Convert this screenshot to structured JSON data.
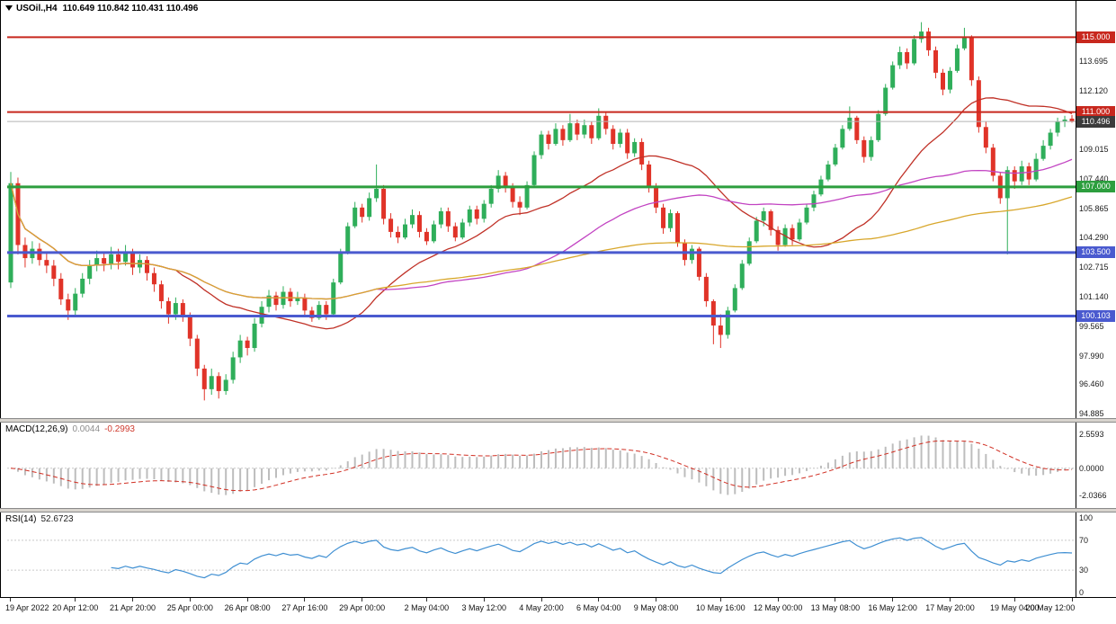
{
  "chart_data": {
    "type": "candlestick",
    "main_chart": {
      "title_symbol": "USOil.,H4",
      "title_ohlc": "110.649 110.842 110.431 110.496",
      "ohlc": {
        "open": 110.649,
        "high": 110.842,
        "low": 110.431,
        "close": 110.496
      },
      "scale": {
        "min": 94.8,
        "max": 116.6
      },
      "colors": {
        "up": "#2fae5a",
        "down": "#e03328"
      },
      "price_axis_labels": [
        {
          "value": 113.695,
          "text": "113.695"
        },
        {
          "value": 112.12,
          "text": "112.120"
        },
        {
          "value": 109.015,
          "text": "109.015"
        },
        {
          "value": 107.44,
          "text": "107.440"
        },
        {
          "value": 105.865,
          "text": "105.865"
        },
        {
          "value": 104.29,
          "text": "104.290"
        },
        {
          "value": 102.715,
          "text": "102.715"
        },
        {
          "value": 101.14,
          "text": "101.140"
        },
        {
          "value": 99.565,
          "text": "99.565"
        },
        {
          "value": 97.99,
          "text": "97.990"
        },
        {
          "value": 96.46,
          "text": "96.460"
        },
        {
          "value": 94.885,
          "text": "94.885"
        }
      ],
      "hlines": [
        {
          "price": 115.0,
          "text": "115.000",
          "color": "#c8281e",
          "width": 2
        },
        {
          "price": 111.0,
          "text": "111.000",
          "color": "#c8281e",
          "width": 2
        },
        {
          "price": 107.0,
          "text": "107.000",
          "color": "#2c9e3e",
          "width": 3
        },
        {
          "price": 103.5,
          "text": "103.500",
          "color": "#4a5acf",
          "width": 3
        },
        {
          "price": 100.103,
          "text": "100.103",
          "color": "#4a5acf",
          "width": 3
        }
      ],
      "current_price": {
        "price": 110.496,
        "text": "110.496",
        "tag_color": "#3c3c3c",
        "line_color": "#b5b5b5"
      },
      "moving_averages": [
        {
          "name": "ma-fast-red-line",
          "period": 24,
          "color": "#c03127"
        },
        {
          "name": "ma-mid-magenta-line",
          "period": 52,
          "color": "#c243c2"
        },
        {
          "name": "ma-slow-orange-line",
          "period": 120,
          "color": "#d8a72c"
        }
      ],
      "candles": [
        [
          101.9,
          107.8,
          101.6,
          107.2
        ],
        [
          107.2,
          107.5,
          103.4,
          103.9
        ],
        [
          103.9,
          104.3,
          102.7,
          103.2
        ],
        [
          103.2,
          104.1,
          102.9,
          103.7
        ],
        [
          103.7,
          104.0,
          102.8,
          103.1
        ],
        [
          103.1,
          103.5,
          102.4,
          102.8
        ],
        [
          102.8,
          103.1,
          101.7,
          102.1
        ],
        [
          102.1,
          102.4,
          100.7,
          101.0
        ],
        [
          101.0,
          101.3,
          99.9,
          100.4
        ],
        [
          100.4,
          101.6,
          100.1,
          101.3
        ],
        [
          101.3,
          102.4,
          101.1,
          102.1
        ],
        [
          102.1,
          103.1,
          101.8,
          102.8
        ],
        [
          102.8,
          103.6,
          102.5,
          103.2
        ],
        [
          103.2,
          103.5,
          102.5,
          102.9
        ],
        [
          102.9,
          103.8,
          102.6,
          103.4
        ],
        [
          103.4,
          103.7,
          102.6,
          103.0
        ],
        [
          103.0,
          103.9,
          102.8,
          103.5
        ],
        [
          103.5,
          103.7,
          102.3,
          102.7
        ],
        [
          102.7,
          103.4,
          102.4,
          103.1
        ],
        [
          103.1,
          103.3,
          102.0,
          102.4
        ],
        [
          102.4,
          102.7,
          101.4,
          101.8
        ],
        [
          101.8,
          102.0,
          100.5,
          100.9
        ],
        [
          100.9,
          101.1,
          99.7,
          100.2
        ],
        [
          100.2,
          101.1,
          99.9,
          100.8
        ],
        [
          100.8,
          101.0,
          99.8,
          100.1
        ],
        [
          100.1,
          100.3,
          98.5,
          98.9
        ],
        [
          98.9,
          99.1,
          96.9,
          97.3
        ],
        [
          97.3,
          97.5,
          95.6,
          96.2
        ],
        [
          96.2,
          97.3,
          95.9,
          96.9
        ],
        [
          96.9,
          97.1,
          95.7,
          96.1
        ],
        [
          96.1,
          97.0,
          95.9,
          96.7
        ],
        [
          96.7,
          98.2,
          96.5,
          97.9
        ],
        [
          97.9,
          99.1,
          97.6,
          98.8
        ],
        [
          98.8,
          99.0,
          98.0,
          98.4
        ],
        [
          98.4,
          100.0,
          98.2,
          99.7
        ],
        [
          99.7,
          100.9,
          99.5,
          100.6
        ],
        [
          100.6,
          101.5,
          100.3,
          101.2
        ],
        [
          101.2,
          101.4,
          100.4,
          100.7
        ],
        [
          100.7,
          101.7,
          100.5,
          101.4
        ],
        [
          101.4,
          101.6,
          100.6,
          100.9
        ],
        [
          100.9,
          101.4,
          100.7,
          101.1
        ],
        [
          101.1,
          101.3,
          100.1,
          100.4
        ],
        [
          100.4,
          100.6,
          99.8,
          100.0
        ],
        [
          100.0,
          100.9,
          99.9,
          100.7
        ],
        [
          100.7,
          100.9,
          99.9,
          100.2
        ],
        [
          100.2,
          102.1,
          100.1,
          101.9
        ],
        [
          101.9,
          103.7,
          101.8,
          103.5
        ],
        [
          103.5,
          105.1,
          103.4,
          104.9
        ],
        [
          104.9,
          106.2,
          104.8,
          105.9
        ],
        [
          105.9,
          106.1,
          105.1,
          105.4
        ],
        [
          105.4,
          106.7,
          105.2,
          106.4
        ],
        [
          106.4,
          108.2,
          106.2,
          106.9
        ],
        [
          106.9,
          107.1,
          105.0,
          105.3
        ],
        [
          105.3,
          105.6,
          104.3,
          104.6
        ],
        [
          104.6,
          104.9,
          104.0,
          104.3
        ],
        [
          104.3,
          105.3,
          104.2,
          105.0
        ],
        [
          105.0,
          105.8,
          104.8,
          105.5
        ],
        [
          105.5,
          105.7,
          104.3,
          104.6
        ],
        [
          104.6,
          104.8,
          103.9,
          104.1
        ],
        [
          104.1,
          105.2,
          104.0,
          105.0
        ],
        [
          105.0,
          105.9,
          104.8,
          105.7
        ],
        [
          105.7,
          105.9,
          104.6,
          104.9
        ],
        [
          104.9,
          105.1,
          104.1,
          104.3
        ],
        [
          104.3,
          105.3,
          104.2,
          105.1
        ],
        [
          105.1,
          106.0,
          104.9,
          105.8
        ],
        [
          105.8,
          106.0,
          105.0,
          105.3
        ],
        [
          105.3,
          106.3,
          105.1,
          106.1
        ],
        [
          106.1,
          107.1,
          105.9,
          106.9
        ],
        [
          106.9,
          107.9,
          106.7,
          107.6
        ],
        [
          107.6,
          107.8,
          106.7,
          107.0
        ],
        [
          107.0,
          107.2,
          105.9,
          106.2
        ],
        [
          106.2,
          106.5,
          105.5,
          105.9
        ],
        [
          105.9,
          107.3,
          105.8,
          107.1
        ],
        [
          107.1,
          108.9,
          107.0,
          108.7
        ],
        [
          108.7,
          110.0,
          108.5,
          109.8
        ],
        [
          109.8,
          110.0,
          109.0,
          109.3
        ],
        [
          109.3,
          110.4,
          109.2,
          110.1
        ],
        [
          110.1,
          110.3,
          109.2,
          109.5
        ],
        [
          109.5,
          110.9,
          109.4,
          110.4
        ],
        [
          110.4,
          110.6,
          109.5,
          109.8
        ],
        [
          109.8,
          110.6,
          109.6,
          110.3
        ],
        [
          110.3,
          110.5,
          109.3,
          109.6
        ],
        [
          109.6,
          111.2,
          109.5,
          110.8
        ],
        [
          110.8,
          111.0,
          109.8,
          110.1
        ],
        [
          110.1,
          110.3,
          109.0,
          109.3
        ],
        [
          109.3,
          110.1,
          109.1,
          109.9
        ],
        [
          109.9,
          110.1,
          108.5,
          108.8
        ],
        [
          108.8,
          109.6,
          108.6,
          109.4
        ],
        [
          109.4,
          109.6,
          107.9,
          108.2
        ],
        [
          108.2,
          108.4,
          106.7,
          107.0
        ],
        [
          107.0,
          107.2,
          105.6,
          105.9
        ],
        [
          105.9,
          106.1,
          104.5,
          104.8
        ],
        [
          104.8,
          105.8,
          104.6,
          105.6
        ],
        [
          105.6,
          105.7,
          103.8,
          104.0
        ],
        [
          104.0,
          104.2,
          102.8,
          103.1
        ],
        [
          103.1,
          103.9,
          102.9,
          103.7
        ],
        [
          103.7,
          103.8,
          102.0,
          102.2
        ],
        [
          102.2,
          102.4,
          100.6,
          100.9
        ],
        [
          100.9,
          101.0,
          98.6,
          99.6
        ],
        [
          99.6,
          100.2,
          98.4,
          99.1
        ],
        [
          99.1,
          100.6,
          98.9,
          100.4
        ],
        [
          100.4,
          101.8,
          100.3,
          101.6
        ],
        [
          101.6,
          103.1,
          101.5,
          102.9
        ],
        [
          102.9,
          104.3,
          102.8,
          104.1
        ],
        [
          104.1,
          105.4,
          104.0,
          105.2
        ],
        [
          105.2,
          105.9,
          104.9,
          105.7
        ],
        [
          105.7,
          105.8,
          104.4,
          104.7
        ],
        [
          104.7,
          104.9,
          103.6,
          103.9
        ],
        [
          103.9,
          105.0,
          103.8,
          104.8
        ],
        [
          104.8,
          105.0,
          103.9,
          104.2
        ],
        [
          104.2,
          105.3,
          104.1,
          105.1
        ],
        [
          105.1,
          106.1,
          105.0,
          105.9
        ],
        [
          105.9,
          106.8,
          105.7,
          106.6
        ],
        [
          106.6,
          107.6,
          106.5,
          107.4
        ],
        [
          107.4,
          108.4,
          107.3,
          108.2
        ],
        [
          108.2,
          109.3,
          108.1,
          109.1
        ],
        [
          109.1,
          110.3,
          109.0,
          110.1
        ],
        [
          110.1,
          111.3,
          110.0,
          110.7
        ],
        [
          110.7,
          110.8,
          109.3,
          109.5
        ],
        [
          109.5,
          109.7,
          108.3,
          108.6
        ],
        [
          108.6,
          109.7,
          108.4,
          109.5
        ],
        [
          109.5,
          111.1,
          109.4,
          110.9
        ],
        [
          110.9,
          112.5,
          110.8,
          112.3
        ],
        [
          112.3,
          113.7,
          112.2,
          113.5
        ],
        [
          113.5,
          114.5,
          113.3,
          114.2
        ],
        [
          114.2,
          114.4,
          113.3,
          113.6
        ],
        [
          113.6,
          115.1,
          113.5,
          114.9
        ],
        [
          114.9,
          115.8,
          114.7,
          115.3
        ],
        [
          115.3,
          115.5,
          114.0,
          114.3
        ],
        [
          114.3,
          114.5,
          112.8,
          113.1
        ],
        [
          113.1,
          113.3,
          111.9,
          112.2
        ],
        [
          112.2,
          113.4,
          112.0,
          113.2
        ],
        [
          113.2,
          114.6,
          113.1,
          114.4
        ],
        [
          114.4,
          115.5,
          114.3,
          115.0
        ],
        [
          115.0,
          115.1,
          112.4,
          112.7
        ],
        [
          112.7,
          112.9,
          109.9,
          110.2
        ],
        [
          110.2,
          110.5,
          108.8,
          109.1
        ],
        [
          109.1,
          109.3,
          107.3,
          107.6
        ],
        [
          107.6,
          107.8,
          106.1,
          106.4
        ],
        [
          106.4,
          108.1,
          103.4,
          107.9
        ],
        [
          107.9,
          108.1,
          106.9,
          107.3
        ],
        [
          107.3,
          108.4,
          107.1,
          108.1
        ],
        [
          108.1,
          108.3,
          107.1,
          107.4
        ],
        [
          107.4,
          108.8,
          107.3,
          108.5
        ],
        [
          108.5,
          109.5,
          108.4,
          109.2
        ],
        [
          109.2,
          110.1,
          109.0,
          109.9
        ],
        [
          109.9,
          110.7,
          109.7,
          110.5
        ],
        [
          110.5,
          110.8,
          110.2,
          110.6
        ],
        [
          110.649,
          110.842,
          110.431,
          110.496
        ]
      ]
    },
    "macd_panel": {
      "name": "MACD(12,26,9)",
      "value_main": "0.0044",
      "value_signal": "-0.2993",
      "params": {
        "fast": 12,
        "slow": 26,
        "signal": 9
      },
      "range": {
        "min": -2.7,
        "max": 3.0
      },
      "axis_labels": [
        {
          "value": 2.5593,
          "text": "2.5593"
        },
        {
          "value": 0,
          "text": "0.0000"
        },
        {
          "value": -2.0366,
          "text": "-2.0366"
        }
      ],
      "colors": {
        "hist": "#bdbdbd",
        "signal": "#d12f23",
        "zero_line": "#c8c8c8"
      }
    },
    "rsi_panel": {
      "name": "RSI(14)",
      "value": "52.6723",
      "period": 14,
      "range": {
        "min": 0,
        "max": 100
      },
      "axis_labels": [
        {
          "value": 100,
          "text": "100"
        },
        {
          "value": 70,
          "text": "70"
        },
        {
          "value": 30,
          "text": "30"
        },
        {
          "value": 0,
          "text": "0"
        }
      ],
      "levels": [
        70,
        30
      ],
      "colors": {
        "line": "#3f8fd2",
        "level_line": "#c9c9c9"
      }
    },
    "time_axis": {
      "labels": [
        {
          "text": "19 Apr 2022",
          "bar": 0
        },
        {
          "text": "20 Apr 12:00",
          "bar": 9
        },
        {
          "text": "21 Apr 20:00",
          "bar": 17
        },
        {
          "text": "25 Apr 00:00",
          "bar": 25
        },
        {
          "text": "26 Apr 08:00",
          "bar": 33
        },
        {
          "text": "27 Apr 16:00",
          "bar": 41
        },
        {
          "text": "29 Apr 00:00",
          "bar": 49
        },
        {
          "text": "2 May 04:00",
          "bar": 58
        },
        {
          "text": "3 May 12:00",
          "bar": 66
        },
        {
          "text": "4 May 20:00",
          "bar": 74
        },
        {
          "text": "6 May 04:00",
          "bar": 82
        },
        {
          "text": "9 May 08:00",
          "bar": 90
        },
        {
          "text": "10 May 16:00",
          "bar": 99
        },
        {
          "text": "12 May 00:00",
          "bar": 107
        },
        {
          "text": "13 May 08:00",
          "bar": 115
        },
        {
          "text": "16 May 12:00",
          "bar": 123
        },
        {
          "text": "17 May 20:00",
          "bar": 131
        },
        {
          "text": "19 May 04:00",
          "bar": 140
        },
        {
          "text": "20 May 12:00",
          "bar": 148
        }
      ]
    }
  }
}
